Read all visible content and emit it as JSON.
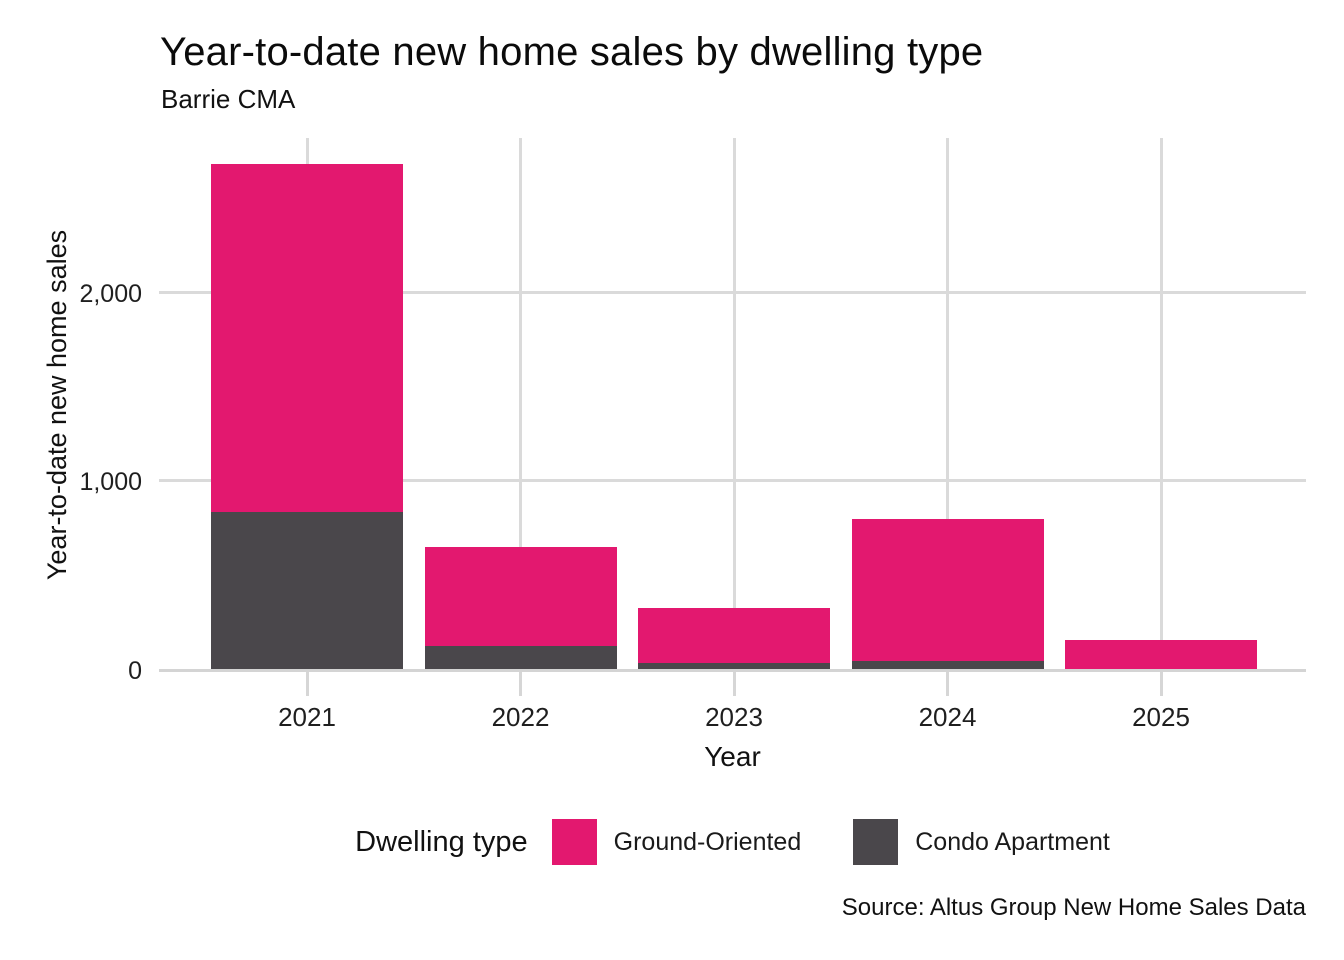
{
  "header": {
    "title": "Year-to-date new home sales by dwelling type",
    "subtitle": "Barrie CMA"
  },
  "chart_data": {
    "type": "bar",
    "stacked": true,
    "title": "Year-to-date new home sales by dwelling type",
    "subtitle": "Barrie CMA",
    "categories": [
      "2021",
      "2022",
      "2023",
      "2024",
      "2025"
    ],
    "series": [
      {
        "name": "Ground-Oriented",
        "color": "#E3186F",
        "values": [
          1850,
          525,
          295,
          755,
          155
        ]
      },
      {
        "name": "Condo Apartment",
        "color": "#4A474B",
        "values": [
          835,
          125,
          30,
          45,
          0
        ]
      }
    ],
    "stack_bottom_to_top": [
      "Condo Apartment",
      "Ground-Oriented"
    ],
    "totals": [
      2685,
      650,
      325,
      800,
      155
    ],
    "xlabel": "Year",
    "ylabel": "Year-to-date new home sales",
    "ylim": [
      0,
      2824
    ],
    "yticks": [
      0,
      1000,
      2000
    ],
    "ytick_labels": [
      "0",
      "1,000",
      "2,000"
    ],
    "grid": true,
    "legend_position": "bottom"
  },
  "legend": {
    "title": "Dwelling type",
    "items": [
      {
        "label": "Ground-Oriented",
        "color": "#E3186F"
      },
      {
        "label": "Condo Apartment",
        "color": "#4A474B"
      }
    ]
  },
  "footer": {
    "source": "Source: Altus Group New Home Sales Data"
  },
  "colors": {
    "ground_oriented": "#E3186F",
    "condo_apartment": "#4A474B",
    "gridline": "#DADADA",
    "axis_line": "#D4D4D4",
    "background": "#FFFFFF",
    "text": "#1A1A1A"
  }
}
